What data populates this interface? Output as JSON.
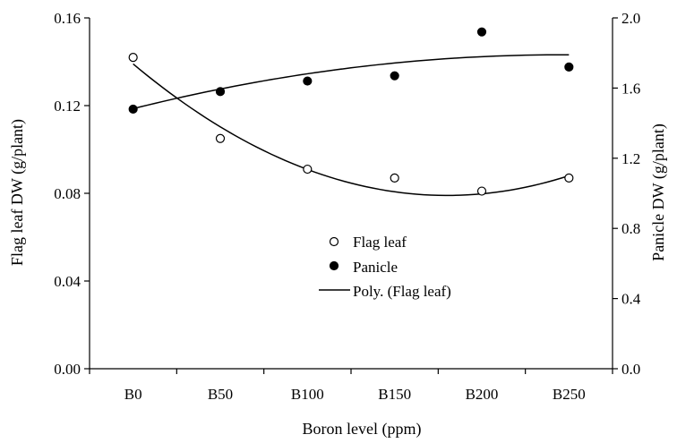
{
  "chart_data": {
    "type": "scatter",
    "title": "",
    "xlabel": "Boron level  (ppm)",
    "ylabel_left": "Flag leaf DW (g/plant)",
    "ylabel_right": "Panicle DW (g/plant)",
    "categories": [
      "B0",
      "B50",
      "B100",
      "B150",
      "B200",
      "B250"
    ],
    "ylim_left": [
      0,
      0.16
    ],
    "yticks_left": [
      "0.00",
      "0.04",
      "0.08",
      "0.12",
      "0.16"
    ],
    "ylim_right": [
      0,
      2.0
    ],
    "yticks_right": [
      "0.0",
      "0.4",
      "0.8",
      "1.2",
      "1.6",
      "2.0"
    ],
    "series": [
      {
        "name": "Flag leaf",
        "axis": "left",
        "marker": "open-circle",
        "values": [
          0.142,
          0.105,
          0.091,
          0.087,
          0.081,
          0.087
        ]
      },
      {
        "name": "Panicle",
        "axis": "right",
        "marker": "filled-circle",
        "values": [
          1.48,
          1.58,
          1.64,
          1.67,
          1.92,
          1.72
        ]
      }
    ],
    "trendlines": [
      {
        "name": "Poly. (Flag leaf)",
        "axis": "left",
        "type": "polynomial-2",
        "values": [
          0.1398,
          0.1091,
          0.0904,
          0.0815,
          0.0805,
          0.0874
        ]
      },
      {
        "name": "",
        "axis": "right",
        "type": "polynomial-2",
        "values": [
          1.48,
          1.6,
          1.68,
          1.74,
          1.78,
          1.79
        ]
      }
    ],
    "legend": {
      "position": "center-right",
      "entries": [
        "Flag leaf",
        "Panicle",
        "Poly. (Flag leaf)"
      ]
    },
    "grid": false
  }
}
